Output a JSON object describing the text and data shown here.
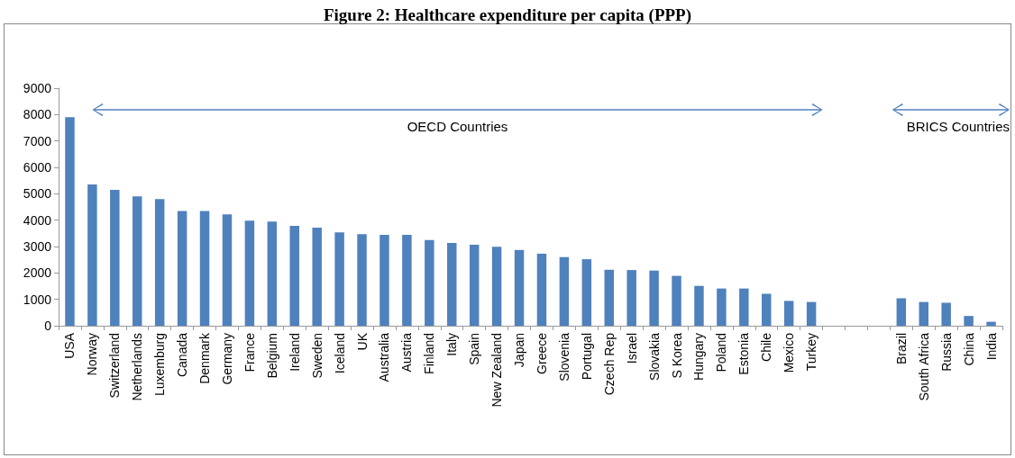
{
  "chart_data": {
    "type": "bar",
    "title": "Figure 2: Healthcare expenditure per capita (PPP)",
    "categories": [
      "USA",
      "Norway",
      "Switzerland",
      "Netherlands",
      "Luxemburg",
      "Canada",
      "Denmark",
      "Germany",
      "France",
      "Belgium",
      "Ireland",
      "Sweden",
      "Iceland",
      "UK",
      "Australia",
      "Austria",
      "Finland",
      "Italy",
      "Spain",
      "New Zealand",
      "Japan",
      "Greece",
      "Slovenia",
      "Portugal",
      "Czech Rep",
      "Israel",
      "Slovakia",
      "S Korea",
      "Hungary",
      "Poland",
      "Estonia",
      "Chile",
      "Mexico",
      "Turkey",
      null,
      null,
      null,
      "Brazil",
      "South Africa",
      "Russia",
      "China",
      "India"
    ],
    "values": [
      7900,
      5350,
      5150,
      4900,
      4800,
      4350,
      4350,
      4220,
      3980,
      3950,
      3780,
      3720,
      3540,
      3470,
      3440,
      3440,
      3250,
      3140,
      3070,
      2990,
      2870,
      2730,
      2600,
      2520,
      2120,
      2110,
      2090,
      1890,
      1510,
      1410,
      1410,
      1210,
      940,
      900,
      null,
      null,
      null,
      1040,
      900,
      870,
      370,
      150
    ],
    "color": "#4f81bd",
    "ylim": [
      0,
      9000
    ],
    "yticks": [
      0,
      1000,
      2000,
      3000,
      4000,
      5000,
      6000,
      7000,
      8000,
      9000
    ],
    "annotations": [
      "OECD Countries",
      "BRICS Countries"
    ],
    "grid": false
  }
}
